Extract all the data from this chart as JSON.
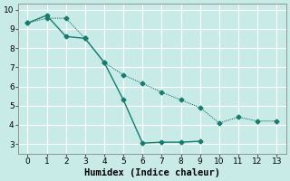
{
  "line1_x": [
    0,
    1,
    2,
    3,
    4,
    5,
    6,
    7,
    8,
    9
  ],
  "line1_y": [
    9.3,
    9.7,
    8.6,
    8.5,
    7.25,
    5.3,
    3.05,
    3.1,
    3.1,
    3.15
  ],
  "line2_x": [
    0,
    1,
    2,
    3,
    4,
    5,
    6,
    7,
    8,
    9,
    10,
    11,
    12,
    13
  ],
  "line2_y": [
    9.3,
    9.55,
    9.55,
    8.5,
    7.25,
    6.6,
    6.15,
    5.7,
    5.3,
    4.9,
    4.1,
    4.4,
    4.2,
    4.2
  ],
  "line_color": "#1a7a6e",
  "bg_color": "#c8ebe8",
  "grid_major_color": "#b0d8d4",
  "grid_minor_color": "#daf0ee",
  "xlabel": "Humidex (Indice chaleur)",
  "xlim": [
    -0.5,
    13.5
  ],
  "ylim": [
    2.5,
    10.3
  ],
  "xticks": [
    0,
    1,
    2,
    3,
    4,
    5,
    6,
    7,
    8,
    9,
    10,
    11,
    12,
    13
  ],
  "yticks": [
    3,
    4,
    5,
    6,
    7,
    8,
    9,
    10
  ],
  "tick_fontsize": 6.5,
  "xlabel_fontsize": 7.5,
  "marker": "D",
  "marker_size": 2.5,
  "linewidth": 1.0,
  "line2_linewidth": 0.8
}
